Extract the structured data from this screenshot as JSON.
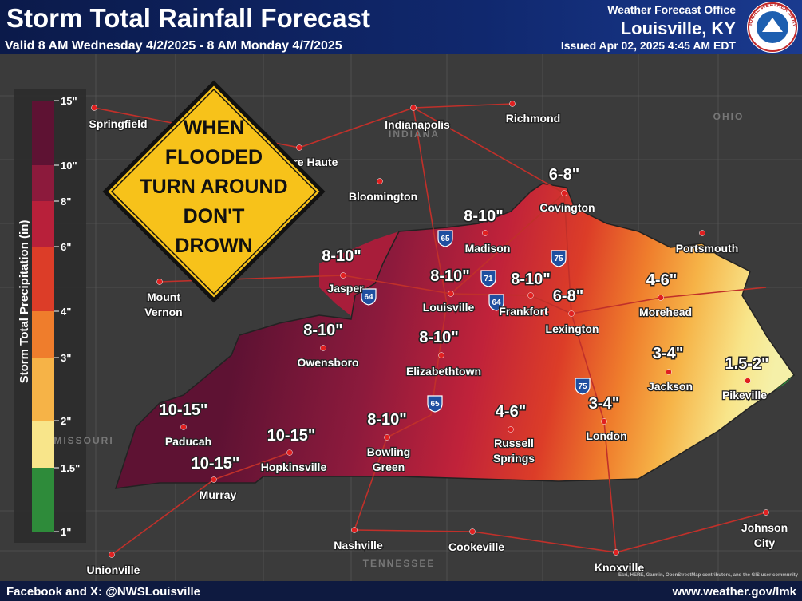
{
  "header": {
    "title": "Storm Total Rainfall Forecast",
    "valid": "Valid 8 AM Wednesday 4/2/2025 - 8 AM Monday 4/7/2025",
    "office_line1": "Weather Forecast Office",
    "office_line2": "Louisville, KY",
    "issued": "Issued Apr 02, 2025 4:45 AM EDT",
    "logo_text": "NATIONAL WEATHER SERVICE"
  },
  "legend": {
    "title": "Storm Total Precipitation (in)",
    "ticks": [
      "15\"",
      "10\"",
      "8\"",
      "6\"",
      "4\"",
      "3\"",
      "2\"",
      "1.5\"",
      "1\""
    ],
    "colors": [
      "#5e1233",
      "#8c1a3c",
      "#b8203a",
      "#dc3d28",
      "#ef7d2c",
      "#f6b347",
      "#f8e58a",
      "#2e8b3a"
    ]
  },
  "sign": {
    "lines": [
      "WHEN",
      "FLOODED",
      "TURN AROUND",
      "DON'T",
      "DROWN"
    ]
  },
  "forecast_labels": [
    "6-8\"",
    "8-10\"",
    "8-10\"",
    "8-10\"",
    "8-10\"",
    "6-8\"",
    "4-6\"",
    "8-10\"",
    "8-10\"",
    "3-4\"",
    "1.5-2\"",
    "10-15\"",
    "4-6\"",
    "3-4\"",
    "8-10\"",
    "10-15\"",
    "10-15\""
  ],
  "cities": [
    [
      "Springfield"
    ],
    [
      "Indianapolis"
    ],
    [
      "Richmond"
    ],
    [
      "Terre Haute"
    ],
    [
      "Bloomington"
    ],
    [
      "Covington"
    ],
    [
      "Madison"
    ],
    [
      "Portsmouth"
    ],
    [
      "Jasper"
    ],
    [
      "Mount",
      "Vernon"
    ],
    [
      "Louisville"
    ],
    [
      "Frankfort"
    ],
    [
      "Lexington"
    ],
    [
      "Morehead"
    ],
    [
      "Owensboro"
    ],
    [
      "Elizabethtown"
    ],
    [
      "Jackson"
    ],
    [
      "Pikeville"
    ],
    [
      "Paducah"
    ],
    [
      "London"
    ],
    [
      "Russell",
      "Springs"
    ],
    [
      "Bowling",
      "Green"
    ],
    [
      "Hopkinsville"
    ],
    [
      "Murray"
    ],
    [
      "Johnson",
      "City"
    ],
    [
      "Nashville"
    ],
    [
      "Cookeville"
    ],
    [
      "Knoxville"
    ],
    [
      "Unionville"
    ]
  ],
  "state_labels": [
    "INDIANA",
    "OHIO",
    "MISSOURI",
    "TENNESSEE"
  ],
  "highways": [
    "65",
    "71",
    "64",
    "75",
    "64",
    "65",
    "75"
  ],
  "footer": {
    "social": "Facebook and X: @NWSLouisville",
    "url": "www.weather.gov/lmk",
    "attribution": "Esri, HERE, Garmin, OpenStreetMap contributors, and the GIS user community"
  }
}
